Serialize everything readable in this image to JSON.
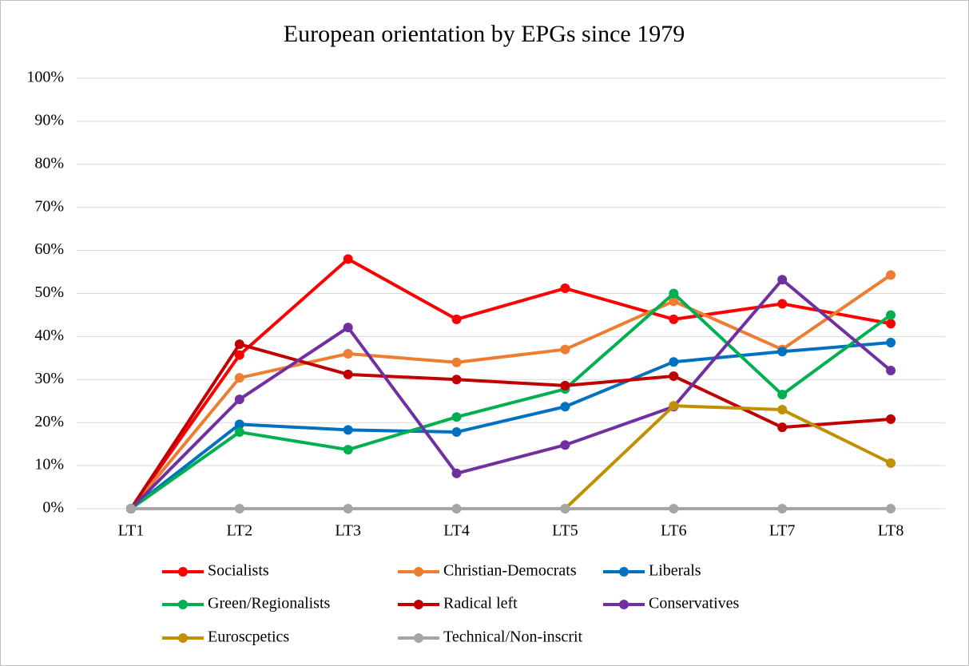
{
  "chart_data": {
    "type": "line",
    "title": "European orientation by EPGs since 1979",
    "categories": [
      "LT1",
      "LT2",
      "LT3",
      "LT4",
      "LT5",
      "LT6",
      "LT7",
      "LT8"
    ],
    "series": [
      {
        "name": "Socialists",
        "color": "#ff0000",
        "values": [
          0,
          35.7,
          58,
          44,
          51.2,
          44,
          47.6,
          43
        ]
      },
      {
        "name": "Christian-Democrats",
        "color": "#ed7d31",
        "values": [
          0,
          30.4,
          36,
          34,
          37,
          48.2,
          37,
          54.3
        ]
      },
      {
        "name": "Liberals",
        "color": "#0070c0",
        "values": [
          0,
          19.6,
          18.3,
          17.8,
          23.7,
          34.1,
          36.5,
          38.6
        ]
      },
      {
        "name": "Green/Regionalists",
        "color": "#00b050",
        "values": [
          0,
          17.8,
          13.7,
          21.3,
          27.8,
          50,
          26.5,
          45
        ]
      },
      {
        "name": "Radical left",
        "color": "#c00000",
        "values": [
          0,
          38.2,
          31.2,
          30,
          28.6,
          30.8,
          18.9,
          20.8
        ]
      },
      {
        "name": "Conservatives",
        "color": "#7030a0",
        "values": [
          0,
          25.4,
          42.1,
          8.2,
          14.8,
          23.7,
          53.2,
          32.1
        ]
      },
      {
        "name": "Euroscpetics",
        "color": "#bf9000",
        "values": [
          null,
          null,
          null,
          null,
          0,
          23.9,
          23,
          10.6
        ]
      },
      {
        "name": "Technical/Non-inscrit",
        "color": "#a5a5a5",
        "values": [
          0,
          0,
          0,
          0,
          0,
          0,
          0,
          0
        ]
      }
    ],
    "ylim": [
      0,
      100
    ],
    "yticks": [
      {
        "value": 0,
        "label": "0%"
      },
      {
        "value": 10,
        "label": "10%"
      },
      {
        "value": 20,
        "label": "20%"
      },
      {
        "value": 30,
        "label": "30%"
      },
      {
        "value": 40,
        "label": "40%"
      },
      {
        "value": 50,
        "label": "50%"
      },
      {
        "value": 60,
        "label": "60%"
      },
      {
        "value": 70,
        "label": "70%"
      },
      {
        "value": 80,
        "label": "80%"
      },
      {
        "value": 90,
        "label": "90%"
      },
      {
        "value": 100,
        "label": "100%"
      }
    ],
    "grid": true,
    "legend": "bottom"
  }
}
